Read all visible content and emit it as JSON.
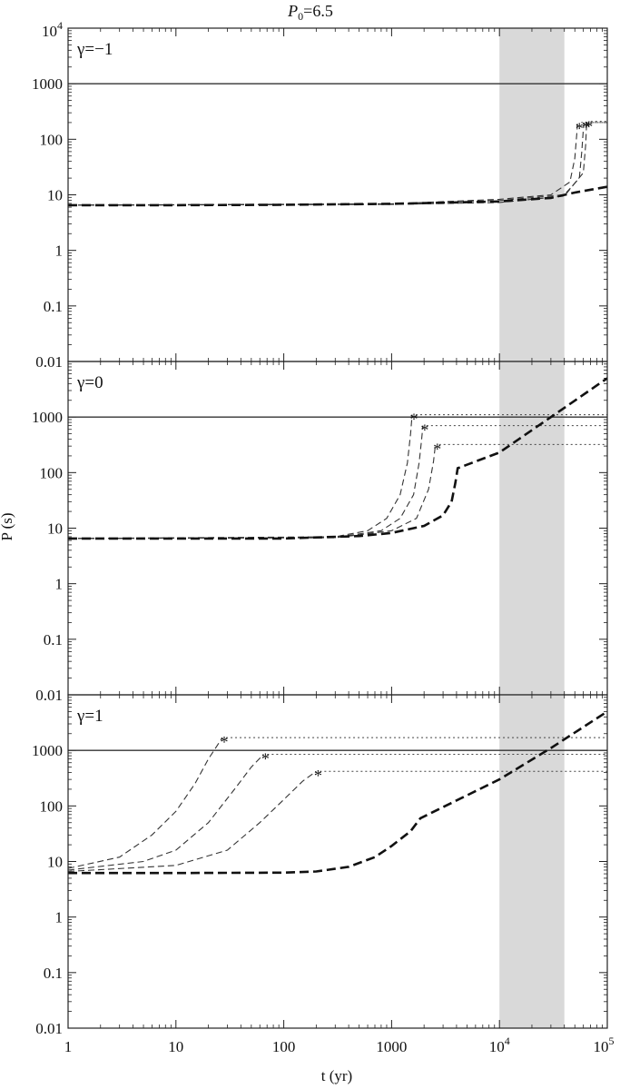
{
  "title_prefix": "P",
  "title_sub": "0",
  "title_suffix": "=6.5",
  "xlabel": "t (yr)",
  "ylabel": "P (s)",
  "x_ticks": [
    {
      "value": 1,
      "text": "1"
    },
    {
      "value": 10,
      "text": "10"
    },
    {
      "value": 100,
      "text": "100"
    },
    {
      "value": 1000,
      "text": "1000"
    },
    {
      "value": 10000,
      "base": "10",
      "exp": "4"
    },
    {
      "value": 100000,
      "base": "10",
      "exp": "5"
    }
  ],
  "y_ticks": [
    {
      "value": 0.01,
      "text": "0.01"
    },
    {
      "value": 0.1,
      "text": "0.1"
    },
    {
      "value": 1,
      "text": "1"
    },
    {
      "value": 10,
      "text": "10"
    },
    {
      "value": 100,
      "text": "100"
    },
    {
      "value": 1000,
      "text": "1000"
    }
  ],
  "top_y_tick": {
    "value": 10000,
    "base": "10",
    "exp": "4"
  },
  "chart_data": {
    "type": "line",
    "xscale": "log",
    "yscale": "log",
    "xlim": [
      1,
      100000
    ],
    "ylim": [
      0.01,
      10000
    ],
    "shaded_band_x": [
      10000,
      40000
    ],
    "shaded_color": "#d9d9d9",
    "reference_line_y": 1000,
    "panels": [
      {
        "label": "γ=−1",
        "thick": [
          [
            1,
            6.5
          ],
          [
            10,
            6.5
          ],
          [
            100,
            6.6
          ],
          [
            1000,
            6.9
          ],
          [
            10000,
            7.6
          ],
          [
            30000,
            8.8
          ],
          [
            50000,
            11
          ],
          [
            100000,
            14
          ]
        ],
        "thin": [
          {
            "points": [
              [
                1,
                6.5
              ],
              [
                1000,
                6.9
              ],
              [
                10000,
                8.3
              ],
              [
                30000,
                10
              ],
              [
                45000,
                17
              ],
              [
                50000,
                45
              ],
              [
                52000,
                120
              ],
              [
                53000,
                190
              ]
            ],
            "star": [
              53000,
              190
            ],
            "end": 200
          },
          {
            "points": [
              [
                1,
                6.5
              ],
              [
                1000,
                6.8
              ],
              [
                10000,
                7.9
              ],
              [
                40000,
                10
              ],
              [
                55000,
                20
              ],
              [
                58000,
                60
              ],
              [
                60000,
                150
              ],
              [
                61000,
                200
              ]
            ],
            "star": [
              61000,
              200
            ],
            "end": 200
          },
          {
            "points": [
              [
                1,
                6.5
              ],
              [
                1000,
                6.7
              ],
              [
                10000,
                7.3
              ],
              [
                40000,
                9.5
              ],
              [
                60000,
                25
              ],
              [
                63000,
                80
              ],
              [
                64000,
                160
              ],
              [
                65000,
                205
              ]
            ],
            "star": [
              65000,
              205
            ],
            "end": 210
          }
        ]
      },
      {
        "label": "γ=0",
        "thick": [
          [
            1,
            6.5
          ],
          [
            100,
            6.5
          ],
          [
            500,
            7.2
          ],
          [
            1000,
            8.2
          ],
          [
            2000,
            11
          ],
          [
            3000,
            17
          ],
          [
            3600,
            30
          ],
          [
            3900,
            65
          ],
          [
            4100,
            120
          ],
          [
            10000,
            230
          ],
          [
            30000,
            1000
          ],
          [
            100000,
            5000
          ]
        ],
        "thin": [
          {
            "points": [
              [
                1,
                6.5
              ],
              [
                300,
                7
              ],
              [
                600,
                9
              ],
              [
                900,
                15
              ],
              [
                1200,
                40
              ],
              [
                1400,
                150
              ],
              [
                1500,
                500
              ],
              [
                1550,
                1100
              ]
            ],
            "star": [
              1550,
              1100
            ],
            "end": 1100
          },
          {
            "points": [
              [
                1,
                6.5
              ],
              [
                300,
                6.8
              ],
              [
                800,
                9
              ],
              [
                1200,
                15
              ],
              [
                1600,
                40
              ],
              [
                1800,
                150
              ],
              [
                1900,
                400
              ],
              [
                1950,
                700
              ]
            ],
            "star": [
              1950,
              700
            ],
            "end": 700
          },
          {
            "points": [
              [
                1,
                6.5
              ],
              [
                300,
                6.7
              ],
              [
                1000,
                9
              ],
              [
                1700,
                15
              ],
              [
                2200,
                50
              ],
              [
                2450,
                160
              ],
              [
                2550,
                320
              ]
            ],
            "star": [
              2550,
              320
            ],
            "end": 320
          }
        ]
      },
      {
        "label": "γ=1",
        "thick": [
          [
            1,
            6.2
          ],
          [
            10,
            6.2
          ],
          [
            100,
            6.3
          ],
          [
            200,
            6.6
          ],
          [
            400,
            8
          ],
          [
            700,
            12
          ],
          [
            1000,
            19
          ],
          [
            1500,
            35
          ],
          [
            1850,
            60
          ],
          [
            10000,
            300
          ],
          [
            30000,
            1100
          ],
          [
            100000,
            5000
          ]
        ],
        "thin": [
          {
            "points": [
              [
                1,
                7.5
              ],
              [
                3,
                12
              ],
              [
                6,
                30
              ],
              [
                10,
                80
              ],
              [
                15,
                250
              ],
              [
                20,
                700
              ],
              [
                27,
                1700
              ]
            ],
            "star": [
              27,
              1700
            ],
            "end": 1700
          },
          {
            "points": [
              [
                1,
                7
              ],
              [
                5,
                10
              ],
              [
                10,
                16
              ],
              [
                20,
                50
              ],
              [
                35,
                200
              ],
              [
                50,
                500
              ],
              [
                65,
                850
              ]
            ],
            "star": [
              65,
              850
            ],
            "end": 850
          },
          {
            "points": [
              [
                1,
                6.6
              ],
              [
                10,
                8.5
              ],
              [
                30,
                16
              ],
              [
                60,
                50
              ],
              [
                100,
                130
              ],
              [
                150,
                280
              ],
              [
                200,
                420
              ]
            ],
            "star": [
              200,
              420
            ],
            "end": 420
          }
        ]
      }
    ]
  }
}
